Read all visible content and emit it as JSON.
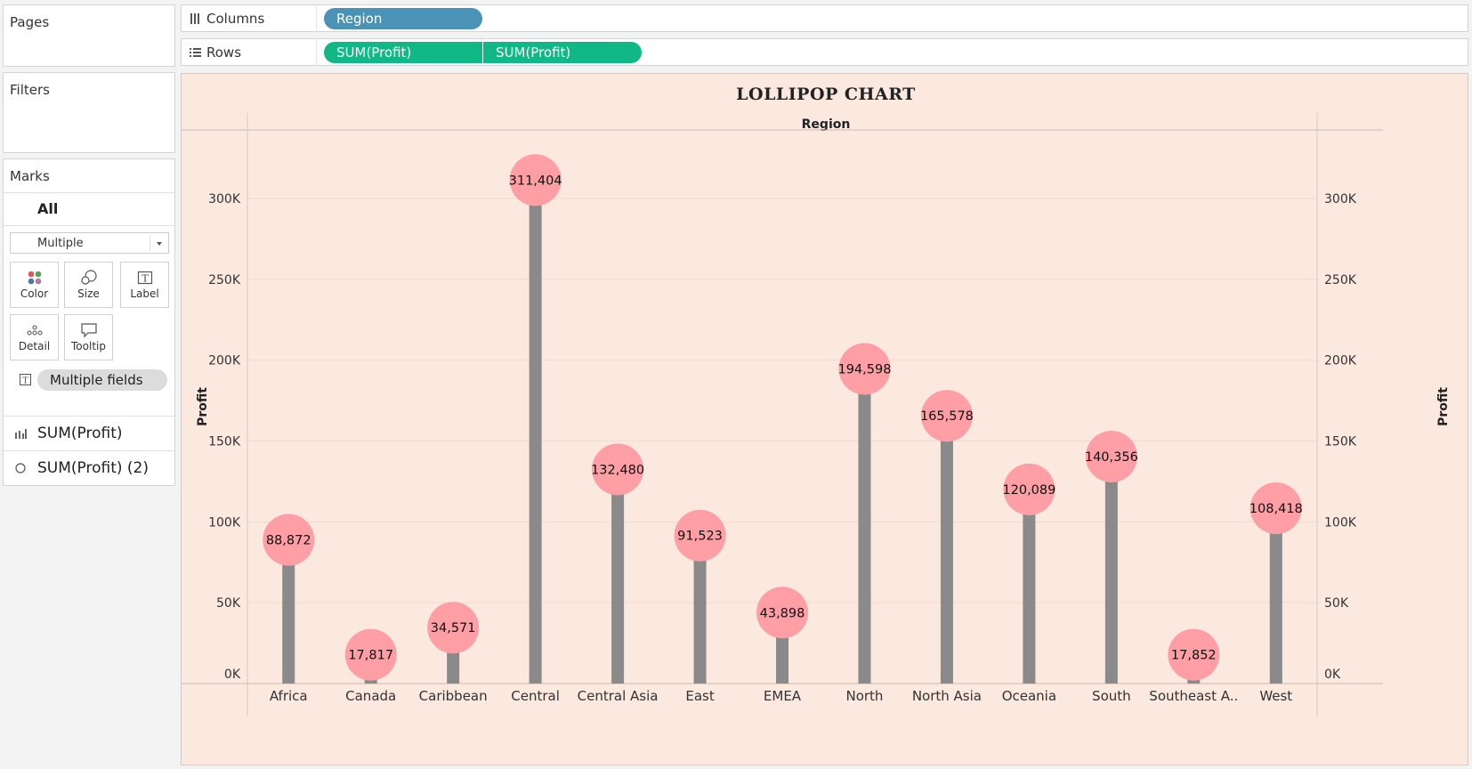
{
  "left_pane": {
    "pages_title": "Pages",
    "filters_title": "Filters",
    "marks": {
      "title": "Marks",
      "all_label": "All",
      "mark_type": "Multiple",
      "buttons": [
        {
          "label": "Color",
          "icon": "color-dots-icon"
        },
        {
          "label": "Size",
          "icon": "size-circles-icon"
        },
        {
          "label": "Label",
          "icon": "label-t-icon"
        },
        {
          "label": "Detail",
          "icon": "detail-dots-icon"
        },
        {
          "label": "Tooltip",
          "icon": "tooltip-bubble-icon"
        }
      ],
      "field_pill": "Multiple fields",
      "tabs": [
        {
          "label": "SUM(Profit)",
          "icon": "bar-chart-icon"
        },
        {
          "label": "SUM(Profit) (2)",
          "icon": "circle-icon"
        }
      ]
    }
  },
  "shelves": {
    "columns": {
      "label": "Columns",
      "icon": "columns-icon",
      "pills": [
        "Region"
      ]
    },
    "rows": {
      "label": "Rows",
      "icon": "rows-icon",
      "pills": [
        "SUM(Profit)",
        "SUM(Profit)"
      ]
    }
  },
  "colors": {
    "columns_pill": "#4a93b7",
    "rows_pill": "#10b886",
    "chart_background": "#fbe8df",
    "stick": "#8a8a8a",
    "candy": "#ff9ea5"
  },
  "chart_data": {
    "type": "bar",
    "title": "LOLLIPOP CHART",
    "column_header": "Region",
    "xlabel": "",
    "ylabel": "Profit",
    "ylabel_right": "Profit",
    "categories": [
      "Africa",
      "Canada",
      "Caribbean",
      "Central",
      "Central Asia",
      "East",
      "EMEA",
      "North",
      "North Asia",
      "Oceania",
      "South",
      "Southeast A..",
      "West"
    ],
    "series": [
      {
        "name": "SUM(Profit)",
        "mark": "bar",
        "values": [
          88872,
          17817,
          34571,
          311404,
          132480,
          91523,
          43898,
          194598,
          165578,
          120089,
          140356,
          17852,
          108418
        ]
      },
      {
        "name": "SUM(Profit) (2)",
        "mark": "circle",
        "values": [
          88872,
          17817,
          34571,
          311404,
          132480,
          91523,
          43898,
          194598,
          165578,
          120089,
          140356,
          17852,
          108418
        ]
      }
    ],
    "value_labels": [
      "88,872",
      "17,817",
      "34,571",
      "311,404",
      "132,480",
      "91,523",
      "43,898",
      "194,598",
      "165,578",
      "120,089",
      "140,356",
      "17,852",
      "108,418"
    ],
    "yticks": [
      0,
      50000,
      100000,
      150000,
      200000,
      250000,
      300000
    ],
    "ytick_labels": [
      "0K",
      "50K",
      "100K",
      "150K",
      "200K",
      "250K",
      "300K"
    ],
    "ylim": [
      0,
      340000
    ],
    "grid": true,
    "dual_axis": true
  }
}
